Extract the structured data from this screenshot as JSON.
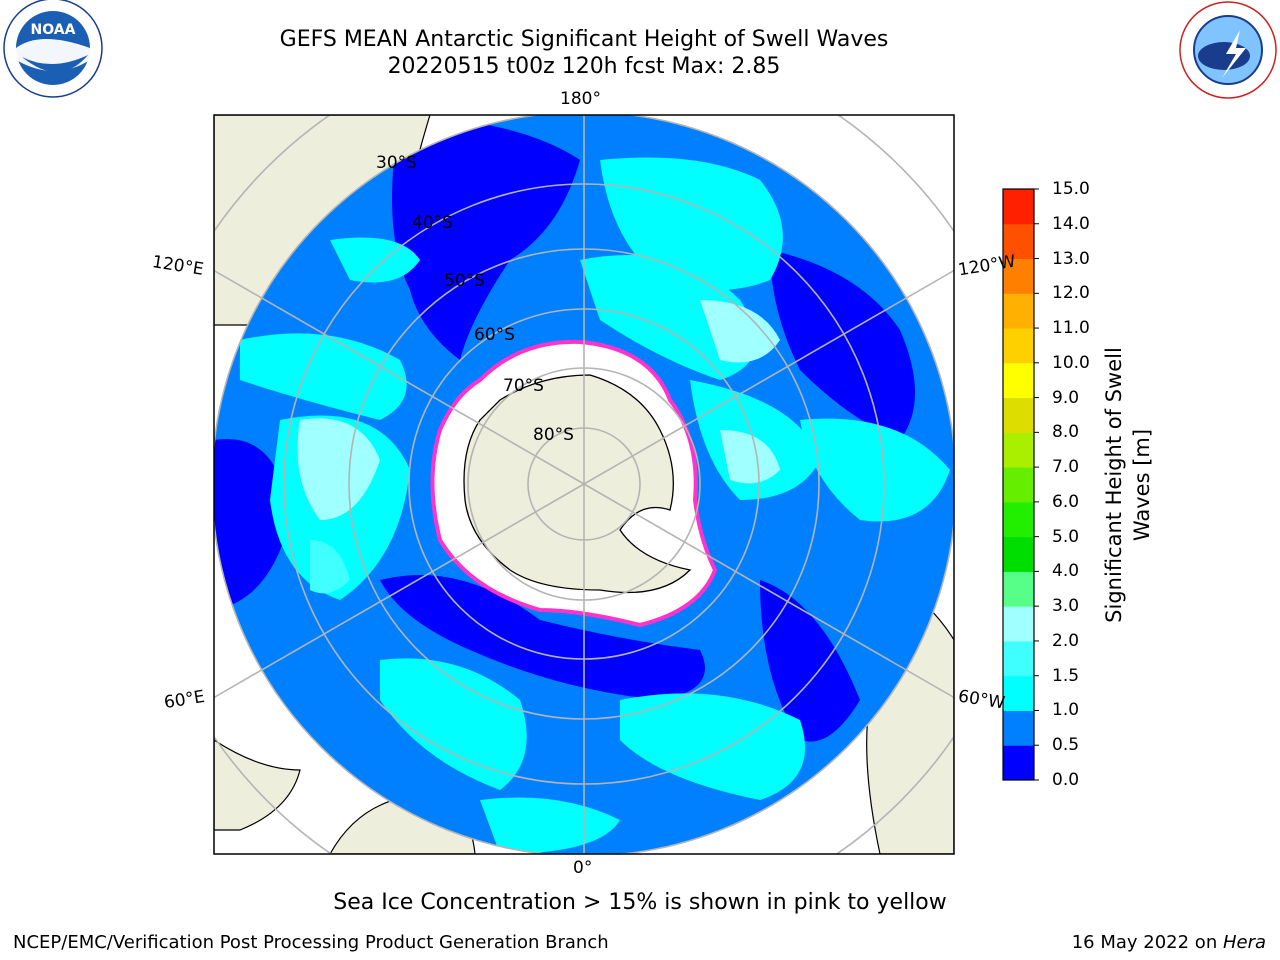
{
  "header": {
    "title_line1": "GEFS MEAN Antarctic Significant Height of Swell Waves",
    "title_line2": "20220515 t00z 120h fcst   Max: 2.85"
  },
  "logos": {
    "noara_text": "NOAA",
    "noaa_ring_text": "NATIONAL OCEANIC AND ATMOSPHERIC ADMINISTRATION · U.S. DEPARTMENT OF COMMERCE",
    "nws_ring_text": "NATIONAL WEATHER SERVICE"
  },
  "map": {
    "projection": "south polar stereographic",
    "longitude_labels": {
      "top": "180°",
      "bottom": "0°",
      "left_upper": "120°E",
      "left_lower": "60°E",
      "right_upper": "120°W",
      "right_lower": "60°W"
    },
    "latitude_labels": [
      "30°S",
      "40°S",
      "50°S",
      "60°S",
      "70°S",
      "80°S"
    ],
    "colors": {
      "ocean_low": "#0000ff",
      "ocean_mid": "#0080ff",
      "ocean_high": "#00ffff",
      "land": "#eeeedc",
      "ice": "#ffffff",
      "ice_edge": "#ff33cc",
      "grid": "#b4b4b4"
    }
  },
  "colorbar": {
    "label": "Significant Height of Swell Waves [m]",
    "ticks": [
      "0.0",
      "0.5",
      "1.0",
      "1.5",
      "2.0",
      "3.0",
      "4.0",
      "5.0",
      "6.0",
      "7.0",
      "8.0",
      "9.0",
      "10.0",
      "11.0",
      "12.0",
      "13.0",
      "14.0",
      "15.0"
    ],
    "colors": [
      "#0000ff",
      "#0080ff",
      "#00ffff",
      "#40ffff",
      "#a0ffff",
      "#55ff88",
      "#00dd00",
      "#22ee00",
      "#66ee00",
      "#aaee00",
      "#dddd00",
      "#ffff00",
      "#ffd000",
      "#ffb000",
      "#ff8000",
      "#ff5000",
      "#ff2000"
    ]
  },
  "footer": {
    "note": "Sea Ice Concentration > 15% is shown in pink to yellow",
    "left": "NCEP/EMC/Verification Post Processing Product Generation Branch",
    "right_date": "16 May 2022 on ",
    "right_host": "Hera"
  }
}
